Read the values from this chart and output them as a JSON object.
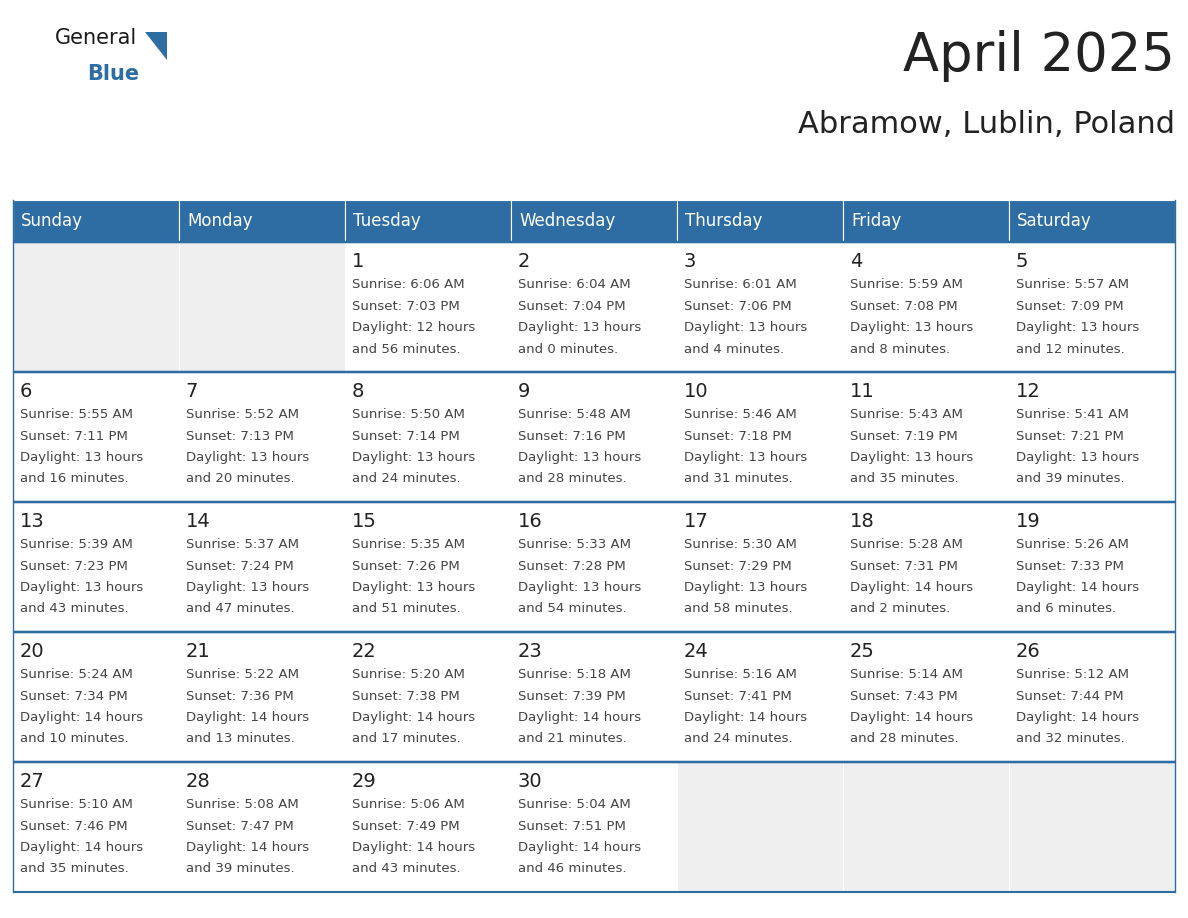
{
  "title": "April 2025",
  "subtitle": "Abramow, Lublin, Poland",
  "header_bg": "#2E6DA4",
  "header_text_color": "#FFFFFF",
  "cell_bg_empty": "#EFEFEF",
  "cell_bg_filled": "#FFFFFF",
  "cell_text_color": "#444444",
  "day_number_color": "#222222",
  "line_color": "#2E6DA4",
  "border_color": "#AAAAAA",
  "days_of_week": [
    "Sunday",
    "Monday",
    "Tuesday",
    "Wednesday",
    "Thursday",
    "Friday",
    "Saturday"
  ],
  "calendar": [
    [
      {
        "day": "",
        "sunrise": "",
        "sunset": "",
        "daylight1": "",
        "daylight2": ""
      },
      {
        "day": "",
        "sunrise": "",
        "sunset": "",
        "daylight1": "",
        "daylight2": ""
      },
      {
        "day": "1",
        "sunrise": "Sunrise: 6:06 AM",
        "sunset": "Sunset: 7:03 PM",
        "daylight1": "Daylight: 12 hours",
        "daylight2": "and 56 minutes."
      },
      {
        "day": "2",
        "sunrise": "Sunrise: 6:04 AM",
        "sunset": "Sunset: 7:04 PM",
        "daylight1": "Daylight: 13 hours",
        "daylight2": "and 0 minutes."
      },
      {
        "day": "3",
        "sunrise": "Sunrise: 6:01 AM",
        "sunset": "Sunset: 7:06 PM",
        "daylight1": "Daylight: 13 hours",
        "daylight2": "and 4 minutes."
      },
      {
        "day": "4",
        "sunrise": "Sunrise: 5:59 AM",
        "sunset": "Sunset: 7:08 PM",
        "daylight1": "Daylight: 13 hours",
        "daylight2": "and 8 minutes."
      },
      {
        "day": "5",
        "sunrise": "Sunrise: 5:57 AM",
        "sunset": "Sunset: 7:09 PM",
        "daylight1": "Daylight: 13 hours",
        "daylight2": "and 12 minutes."
      }
    ],
    [
      {
        "day": "6",
        "sunrise": "Sunrise: 5:55 AM",
        "sunset": "Sunset: 7:11 PM",
        "daylight1": "Daylight: 13 hours",
        "daylight2": "and 16 minutes."
      },
      {
        "day": "7",
        "sunrise": "Sunrise: 5:52 AM",
        "sunset": "Sunset: 7:13 PM",
        "daylight1": "Daylight: 13 hours",
        "daylight2": "and 20 minutes."
      },
      {
        "day": "8",
        "sunrise": "Sunrise: 5:50 AM",
        "sunset": "Sunset: 7:14 PM",
        "daylight1": "Daylight: 13 hours",
        "daylight2": "and 24 minutes."
      },
      {
        "day": "9",
        "sunrise": "Sunrise: 5:48 AM",
        "sunset": "Sunset: 7:16 PM",
        "daylight1": "Daylight: 13 hours",
        "daylight2": "and 28 minutes."
      },
      {
        "day": "10",
        "sunrise": "Sunrise: 5:46 AM",
        "sunset": "Sunset: 7:18 PM",
        "daylight1": "Daylight: 13 hours",
        "daylight2": "and 31 minutes."
      },
      {
        "day": "11",
        "sunrise": "Sunrise: 5:43 AM",
        "sunset": "Sunset: 7:19 PM",
        "daylight1": "Daylight: 13 hours",
        "daylight2": "and 35 minutes."
      },
      {
        "day": "12",
        "sunrise": "Sunrise: 5:41 AM",
        "sunset": "Sunset: 7:21 PM",
        "daylight1": "Daylight: 13 hours",
        "daylight2": "and 39 minutes."
      }
    ],
    [
      {
        "day": "13",
        "sunrise": "Sunrise: 5:39 AM",
        "sunset": "Sunset: 7:23 PM",
        "daylight1": "Daylight: 13 hours",
        "daylight2": "and 43 minutes."
      },
      {
        "day": "14",
        "sunrise": "Sunrise: 5:37 AM",
        "sunset": "Sunset: 7:24 PM",
        "daylight1": "Daylight: 13 hours",
        "daylight2": "and 47 minutes."
      },
      {
        "day": "15",
        "sunrise": "Sunrise: 5:35 AM",
        "sunset": "Sunset: 7:26 PM",
        "daylight1": "Daylight: 13 hours",
        "daylight2": "and 51 minutes."
      },
      {
        "day": "16",
        "sunrise": "Sunrise: 5:33 AM",
        "sunset": "Sunset: 7:28 PM",
        "daylight1": "Daylight: 13 hours",
        "daylight2": "and 54 minutes."
      },
      {
        "day": "17",
        "sunrise": "Sunrise: 5:30 AM",
        "sunset": "Sunset: 7:29 PM",
        "daylight1": "Daylight: 13 hours",
        "daylight2": "and 58 minutes."
      },
      {
        "day": "18",
        "sunrise": "Sunrise: 5:28 AM",
        "sunset": "Sunset: 7:31 PM",
        "daylight1": "Daylight: 14 hours",
        "daylight2": "and 2 minutes."
      },
      {
        "day": "19",
        "sunrise": "Sunrise: 5:26 AM",
        "sunset": "Sunset: 7:33 PM",
        "daylight1": "Daylight: 14 hours",
        "daylight2": "and 6 minutes."
      }
    ],
    [
      {
        "day": "20",
        "sunrise": "Sunrise: 5:24 AM",
        "sunset": "Sunset: 7:34 PM",
        "daylight1": "Daylight: 14 hours",
        "daylight2": "and 10 minutes."
      },
      {
        "day": "21",
        "sunrise": "Sunrise: 5:22 AM",
        "sunset": "Sunset: 7:36 PM",
        "daylight1": "Daylight: 14 hours",
        "daylight2": "and 13 minutes."
      },
      {
        "day": "22",
        "sunrise": "Sunrise: 5:20 AM",
        "sunset": "Sunset: 7:38 PM",
        "daylight1": "Daylight: 14 hours",
        "daylight2": "and 17 minutes."
      },
      {
        "day": "23",
        "sunrise": "Sunrise: 5:18 AM",
        "sunset": "Sunset: 7:39 PM",
        "daylight1": "Daylight: 14 hours",
        "daylight2": "and 21 minutes."
      },
      {
        "day": "24",
        "sunrise": "Sunrise: 5:16 AM",
        "sunset": "Sunset: 7:41 PM",
        "daylight1": "Daylight: 14 hours",
        "daylight2": "and 24 minutes."
      },
      {
        "day": "25",
        "sunrise": "Sunrise: 5:14 AM",
        "sunset": "Sunset: 7:43 PM",
        "daylight1": "Daylight: 14 hours",
        "daylight2": "and 28 minutes."
      },
      {
        "day": "26",
        "sunrise": "Sunrise: 5:12 AM",
        "sunset": "Sunset: 7:44 PM",
        "daylight1": "Daylight: 14 hours",
        "daylight2": "and 32 minutes."
      }
    ],
    [
      {
        "day": "27",
        "sunrise": "Sunrise: 5:10 AM",
        "sunset": "Sunset: 7:46 PM",
        "daylight1": "Daylight: 14 hours",
        "daylight2": "and 35 minutes."
      },
      {
        "day": "28",
        "sunrise": "Sunrise: 5:08 AM",
        "sunset": "Sunset: 7:47 PM",
        "daylight1": "Daylight: 14 hours",
        "daylight2": "and 39 minutes."
      },
      {
        "day": "29",
        "sunrise": "Sunrise: 5:06 AM",
        "sunset": "Sunset: 7:49 PM",
        "daylight1": "Daylight: 14 hours",
        "daylight2": "and 43 minutes."
      },
      {
        "day": "30",
        "sunrise": "Sunrise: 5:04 AM",
        "sunset": "Sunset: 7:51 PM",
        "daylight1": "Daylight: 14 hours",
        "daylight2": "and 46 minutes."
      },
      {
        "day": "",
        "sunrise": "",
        "sunset": "",
        "daylight1": "",
        "daylight2": ""
      },
      {
        "day": "",
        "sunrise": "",
        "sunset": "",
        "daylight1": "",
        "daylight2": ""
      },
      {
        "day": "",
        "sunrise": "",
        "sunset": "",
        "daylight1": "",
        "daylight2": ""
      }
    ]
  ],
  "logo_text_general": "General",
  "logo_text_blue": "Blue",
  "logo_color_general": "#1a1a1a",
  "logo_color_blue": "#2E6DA4",
  "title_fontsize": 38,
  "subtitle_fontsize": 22,
  "header_fontsize": 12,
  "day_num_fontsize": 14,
  "cell_text_fontsize": 9.5
}
